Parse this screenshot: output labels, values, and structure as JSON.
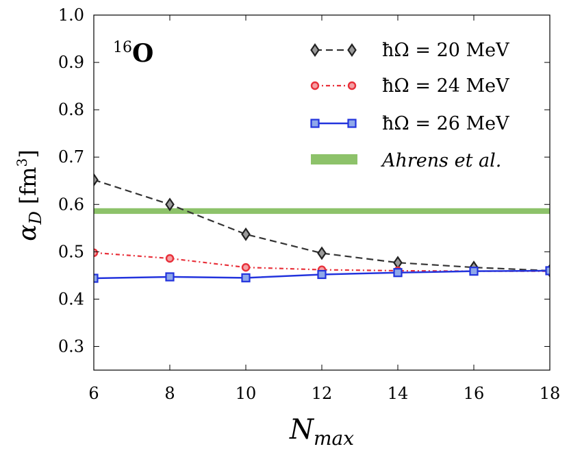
{
  "chart_data": {
    "type": "line",
    "annotation": {
      "prefix": "16",
      "element": "O"
    },
    "xlabel": {
      "main": "N",
      "sub": "max"
    },
    "ylabel": {
      "symbol": "α",
      "sub": "D",
      "unit": "[fm",
      "sup": "3",
      "close": "]"
    },
    "xlim": [
      6,
      18
    ],
    "ylim": [
      0.25,
      1.0
    ],
    "xticks": [
      6,
      8,
      10,
      12,
      14,
      16,
      18
    ],
    "yticks": [
      0.3,
      0.4,
      0.5,
      0.6,
      0.7,
      0.8,
      0.9,
      1.0
    ],
    "xtick_labels": [
      "6",
      "8",
      "10",
      "12",
      "14",
      "16",
      "18"
    ],
    "ytick_labels": [
      "0.3",
      "0.4",
      "0.5",
      "0.6",
      "0.7",
      "0.8",
      "0.9",
      "1.0"
    ],
    "x": [
      6,
      8,
      10,
      12,
      14,
      16,
      18
    ],
    "series": [
      {
        "name": "ħΩ = 20 MeV",
        "color": "#333333",
        "marker": "diamond",
        "dash": "dashed",
        "values": [
          0.652,
          0.6,
          0.537,
          0.497,
          0.477,
          0.467,
          0.46
        ]
      },
      {
        "name": "ħΩ = 24 MeV",
        "color": "#e8303a",
        "marker": "circle",
        "dash": "dashdot",
        "values": [
          0.498,
          0.486,
          0.467,
          0.462,
          0.46,
          0.459,
          0.459
        ]
      },
      {
        "name": "ħΩ = 26 MeV",
        "color": "#2233dd",
        "marker": "square",
        "dash": "solid",
        "values": [
          0.444,
          0.447,
          0.445,
          0.452,
          0.456,
          0.459,
          0.46
        ]
      }
    ],
    "band": {
      "name": "Ahrens et al.",
      "color": "#8dc26a",
      "y_low": 0.58,
      "y_high": 0.592
    },
    "legend_position": "top-right"
  }
}
